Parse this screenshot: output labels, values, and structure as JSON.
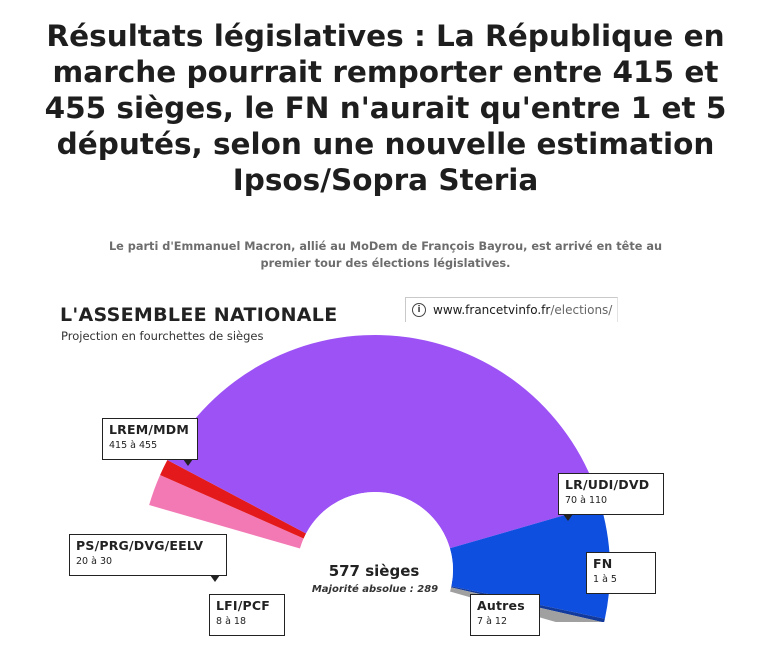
{
  "headline": {
    "line1": "Résultats législatives : La République en",
    "line2": "marche pourrait remporter entre 415 et",
    "line3": "455 sièges, le FN n'aurait qu'entre 1 et 5",
    "line4": "députés, selon une nouvelle estimation",
    "line5": "Ipsos/Sopra Steria"
  },
  "subtitle": {
    "line1": "Le parti d'Emmanuel Macron, allié au MoDem de François Bayrou, est arrivé en tête au",
    "line2": "premier tour des élections législatives."
  },
  "address_bar": {
    "icon": "info-icon",
    "host": "www.francetvinfo.fr",
    "path": "/elections/"
  },
  "chart_data": {
    "type": "pie",
    "variant": "hemicycle",
    "title": "L'ASSEMBLEE NATIONALE",
    "subtitle": "Projection en fourchettes de sièges",
    "total_label": "577 sièges",
    "majority_label": "Majorité absolue : 289",
    "total_seats": 577,
    "slices": [
      {
        "name": "PS/PRG/DVG/EELV",
        "range": "20 à 30",
        "low": 20,
        "high": 30,
        "value": 25,
        "color": "#f279b4"
      },
      {
        "name": "LFI/PCF",
        "range": "8 à 18",
        "low": 8,
        "high": 18,
        "value": 13,
        "color": "#e3191c"
      },
      {
        "name": "LREM/MDM",
        "range": "415 à 455",
        "low": 415,
        "high": 455,
        "value": 435,
        "color": "#9c52f5"
      },
      {
        "name": "LR/UDI/DVD",
        "range": "70 à 110",
        "low": 70,
        "high": 110,
        "value": 90,
        "color": "#0f4fe0"
      },
      {
        "name": "FN",
        "range": "1 à 5",
        "low": 1,
        "high": 5,
        "value": 3,
        "color": "#123a9c"
      },
      {
        "name": "Autres",
        "range": "7 à 12",
        "low": 7,
        "high": 12,
        "value": 10,
        "color": "#a0a0a0"
      }
    ]
  }
}
